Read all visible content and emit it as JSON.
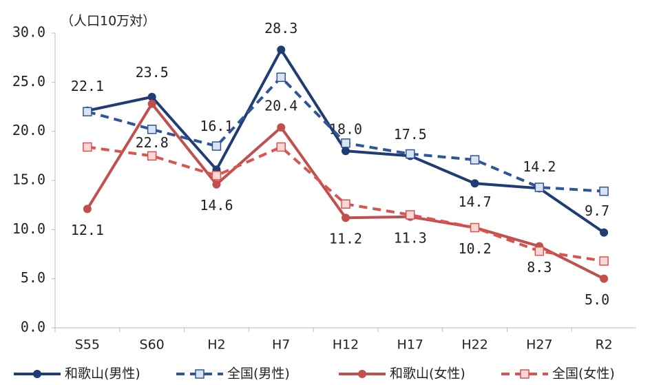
{
  "chart_data": {
    "type": "line",
    "annotation": "（人口10万対）",
    "categories": [
      "S55",
      "S60",
      "H2",
      "H7",
      "H12",
      "H17",
      "H22",
      "H27",
      "R2"
    ],
    "ylim": [
      0,
      30
    ],
    "yticks": [
      {
        "value": 0,
        "label": "0.0"
      },
      {
        "value": 5,
        "label": "5.0"
      },
      {
        "value": 10,
        "label": "10.0"
      },
      {
        "value": 15,
        "label": "15.0"
      },
      {
        "value": 20,
        "label": "20.0"
      },
      {
        "value": 25,
        "label": "25.0"
      },
      {
        "value": 30,
        "label": "30.0"
      }
    ],
    "legend": "bottom",
    "series": [
      {
        "name": "和歌山(男性)",
        "color": "#1f3d74",
        "dash": false,
        "marker": "circle",
        "values": [
          22.1,
          23.5,
          16.1,
          28.3,
          18.0,
          17.5,
          14.7,
          14.2,
          9.7
        ],
        "value_labels": [
          "22.1",
          "23.5",
          "16.1",
          "28.3",
          "18.0",
          "17.5",
          "14.7",
          "14.2",
          "9.7"
        ]
      },
      {
        "name": "全国(男性)",
        "color": "#2e5597",
        "dash": true,
        "marker": "square",
        "values": [
          22.0,
          20.2,
          18.5,
          25.5,
          18.8,
          17.7,
          17.1,
          14.3,
          13.9
        ]
      },
      {
        "name": "和歌山(女性)",
        "color": "#c0504d",
        "dash": false,
        "marker": "circle",
        "values": [
          12.1,
          22.8,
          14.6,
          20.4,
          11.2,
          11.3,
          10.2,
          8.3,
          5.0
        ],
        "value_labels": [
          "12.1",
          "22.8",
          "14.6",
          "20.4",
          "11.2",
          "11.3",
          "10.2",
          "8.3",
          "5.0"
        ]
      },
      {
        "name": "全国(女性)",
        "color": "#d9534f",
        "dash": true,
        "marker": "square",
        "values": [
          18.4,
          17.5,
          15.5,
          18.4,
          12.6,
          11.5,
          10.2,
          7.8,
          6.8
        ]
      }
    ]
  }
}
